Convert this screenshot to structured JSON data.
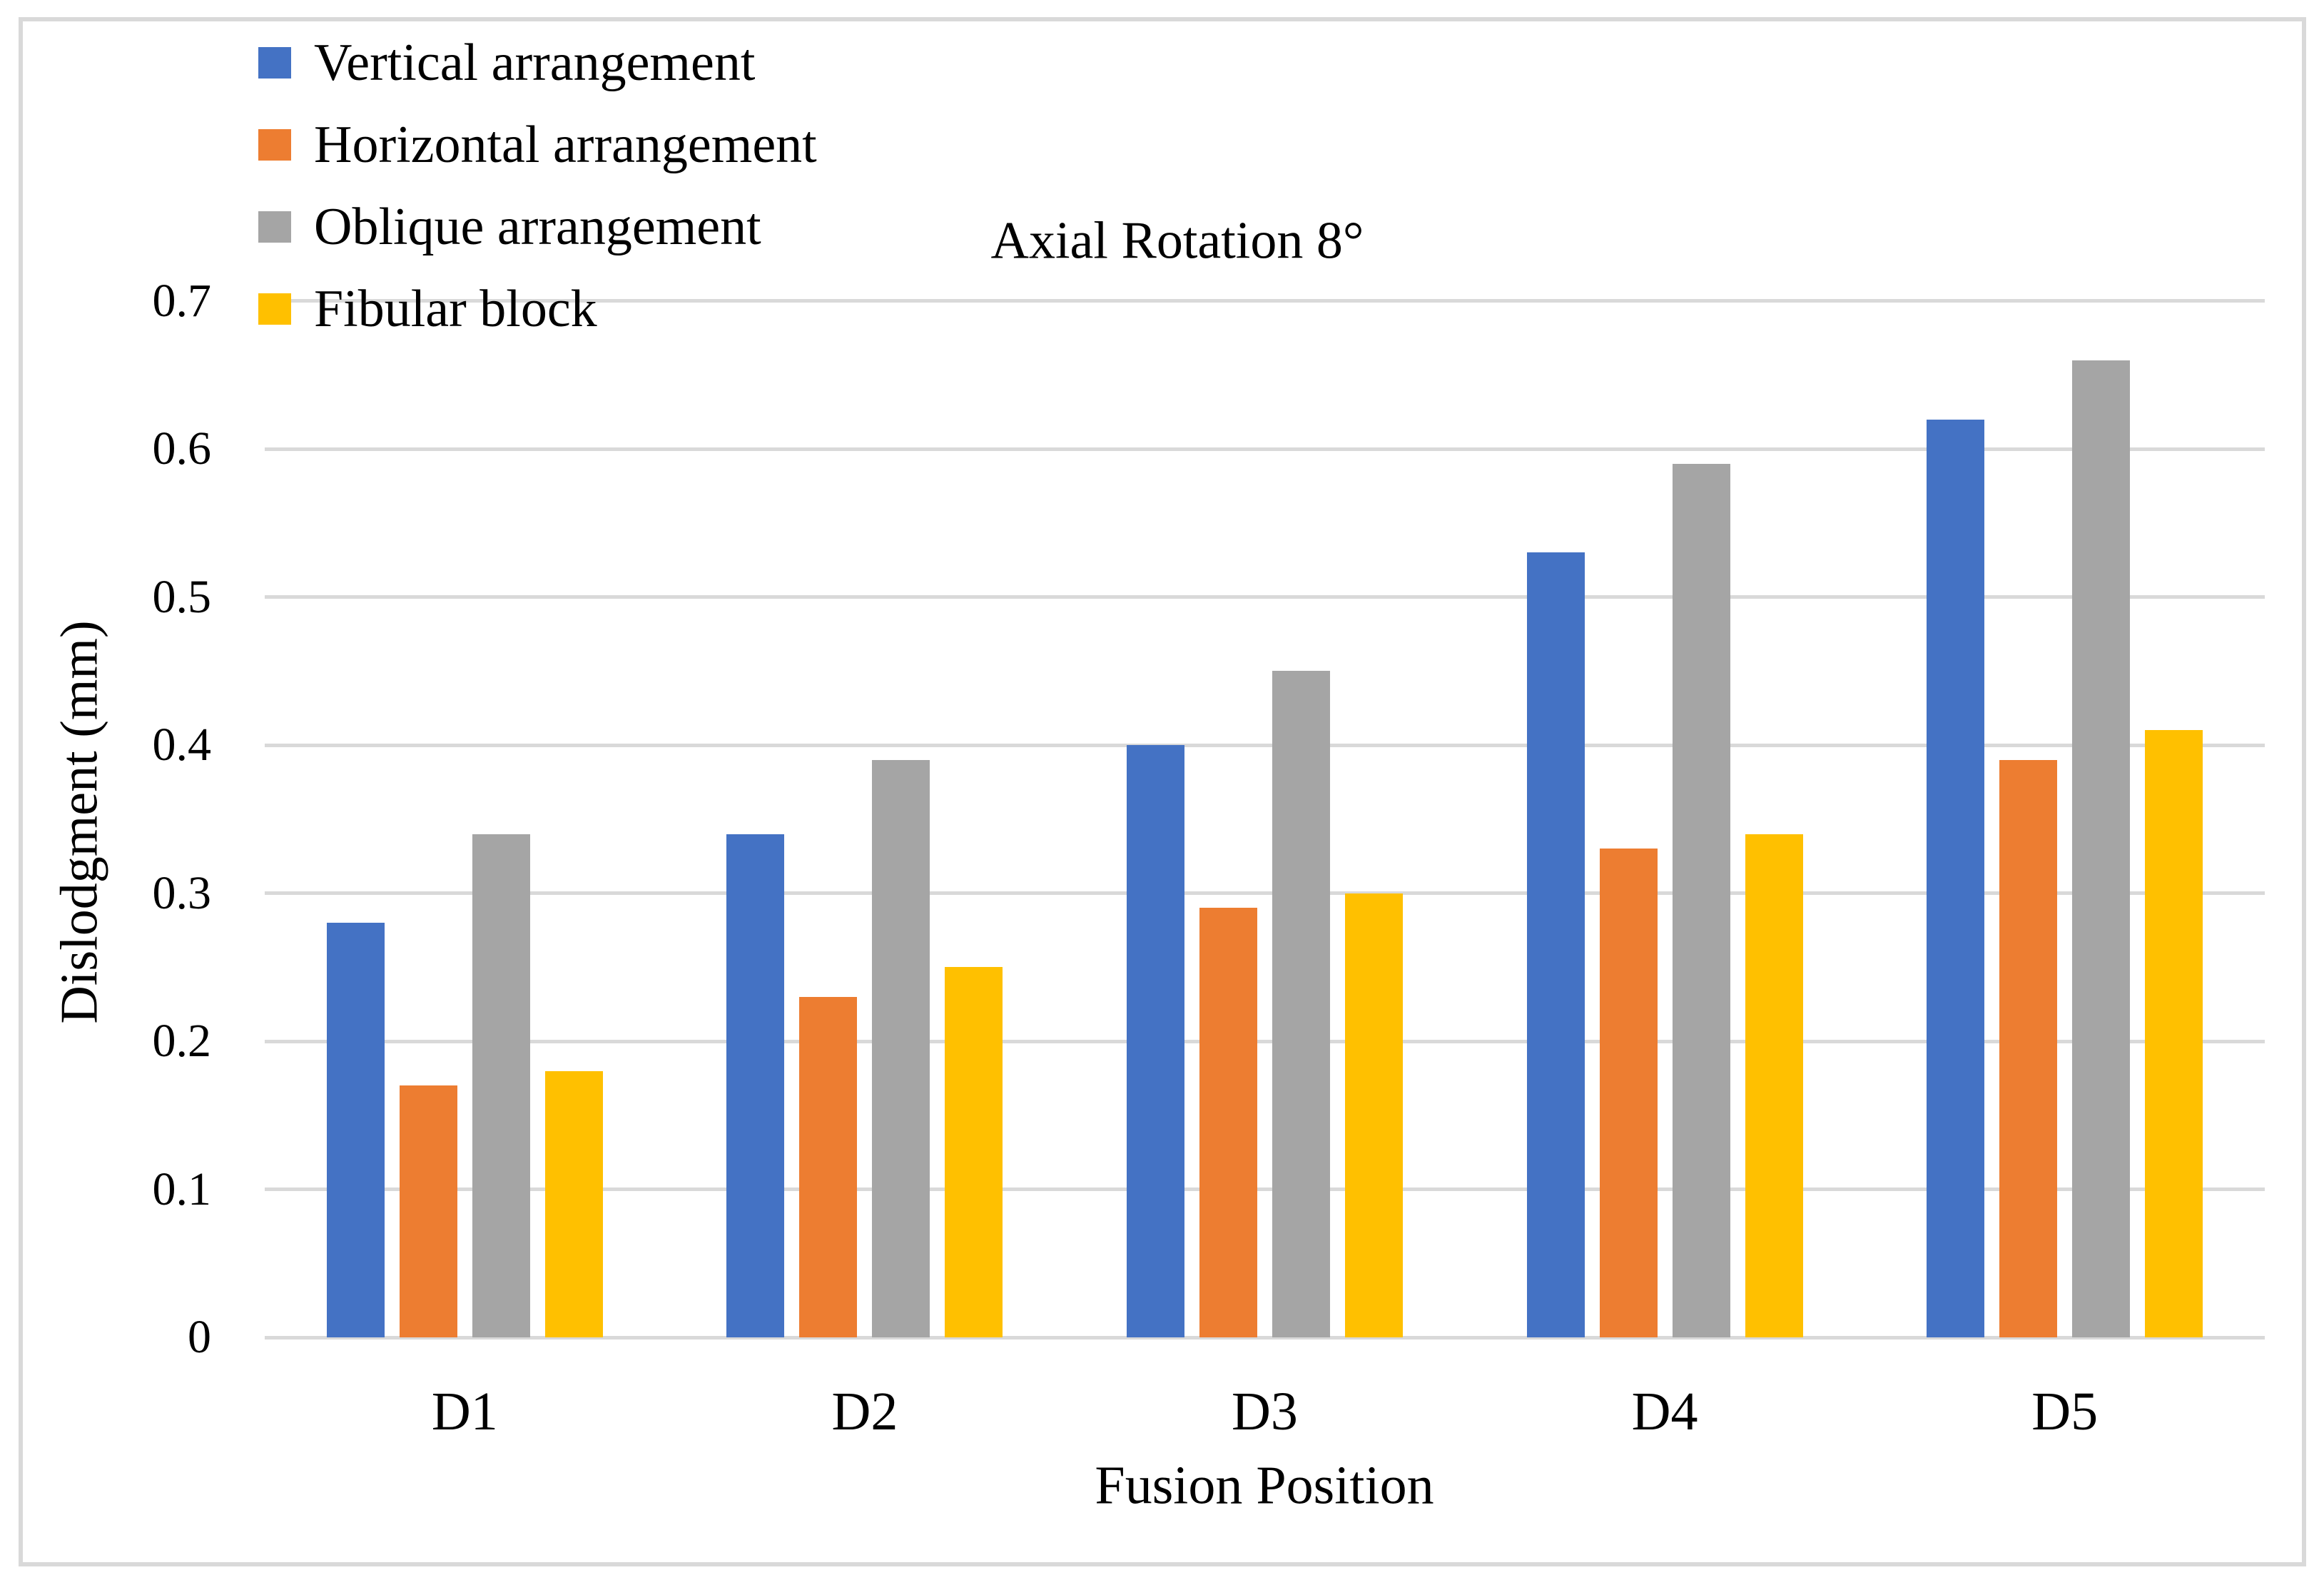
{
  "chart_data": {
    "type": "bar",
    "title": "Axial Rotation 8°",
    "xlabel": "Fusion Position",
    "ylabel": "Dislodgment (mm)",
    "categories": [
      "D1",
      "D2",
      "D3",
      "D4",
      "D5"
    ],
    "series": [
      {
        "name": "Vertical arrangement",
        "color": "#4472C4",
        "values": [
          0.28,
          0.34,
          0.4,
          0.53,
          0.62
        ]
      },
      {
        "name": "Horizontal arrangement",
        "color": "#ED7D31",
        "values": [
          0.17,
          0.23,
          0.29,
          0.33,
          0.39
        ]
      },
      {
        "name": "Oblique arrangement",
        "color": "#A5A5A5",
        "values": [
          0.34,
          0.39,
          0.45,
          0.59,
          0.66
        ]
      },
      {
        "name": "Fibular block",
        "color": "#FFC000",
        "values": [
          0.18,
          0.25,
          0.3,
          0.34,
          0.41
        ]
      }
    ],
    "ylim": [
      0,
      0.7
    ],
    "yticks": [
      {
        "value": 0.0,
        "label": "0"
      },
      {
        "value": 0.1,
        "label": "0.1"
      },
      {
        "value": 0.2,
        "label": "0.2"
      },
      {
        "value": 0.3,
        "label": "0.3"
      },
      {
        "value": 0.4,
        "label": "0.4"
      },
      {
        "value": 0.5,
        "label": "0.5"
      },
      {
        "value": 0.6,
        "label": "0.6"
      },
      {
        "value": 0.7,
        "label": "0.7"
      }
    ],
    "grid": true,
    "legend_position": "top-left"
  },
  "styles": {
    "grid_color": "#D9D9D9",
    "frame_border_color": "#D9D9D9",
    "background": "#FFFFFF",
    "text_color": "#000000"
  }
}
